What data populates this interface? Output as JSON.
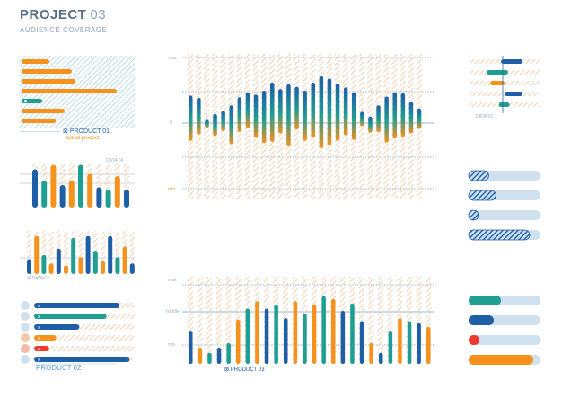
{
  "header": {
    "title": "PROJECT",
    "title_number": "03",
    "subtitle": "AUDIENCE COVERAGE"
  },
  "colors": {
    "orange": "#f5921e",
    "blue": "#1e5fa8",
    "teal": "#1f9e93",
    "red": "#ef3b2d",
    "light": "#cfe0ee",
    "gray": "#8fa3b8"
  },
  "panel_product01": {
    "label": "PRODUCT 01",
    "sublabel": "actual product"
  },
  "panel_data04": {
    "label": "DATA 04"
  },
  "panel_data02": {
    "label": "DATA 02"
  },
  "panel_product02": {
    "label": "PRODUCT 02",
    "marker": "x"
  },
  "panel_data01": {
    "label": "DATA 01"
  },
  "panel_product03": {
    "label": "PRODUCT 03"
  },
  "main_axis": {
    "max": "max",
    "zero": "0",
    "min": "min"
  },
  "bottom_axis": {
    "max": "max",
    "middle": "middle",
    "min": "min"
  },
  "chart_data": [
    {
      "type": "bar",
      "name": "product01",
      "orientation": "horizontal",
      "colors": [
        "orange",
        "orange",
        "orange",
        "orange",
        "teal",
        "orange",
        "orange"
      ],
      "values": [
        0.25,
        0.45,
        0.48,
        0.85,
        0.18,
        0.38,
        0.3
      ]
    },
    {
      "type": "bar",
      "name": "data04",
      "values": [
        0.85,
        0.6,
        0.95,
        0.5,
        0.6,
        0.95,
        0.75,
        0.45,
        0.4,
        0.7,
        0.4
      ],
      "colors": [
        "blue",
        "teal",
        "orange",
        "blue",
        "orange",
        "teal",
        "orange",
        "blue",
        "teal",
        "orange",
        "blue"
      ]
    },
    {
      "type": "bar",
      "name": "data02",
      "values": [
        0.35,
        0.9,
        0.45,
        0.25,
        0.6,
        0.2,
        0.85,
        0.4,
        0.9,
        0.55,
        0.3,
        0.9,
        0.4,
        0.65,
        0.25
      ],
      "colors": [
        "blue",
        "orange",
        "teal",
        "orange",
        "blue",
        "orange",
        "teal",
        "orange",
        "blue",
        "teal",
        "orange",
        "blue",
        "teal",
        "orange",
        "blue"
      ]
    },
    {
      "type": "bar",
      "name": "main",
      "note": "vertical range bars spanning around baseline",
      "ranges": [
        [
          0.85,
          -0.55
        ],
        [
          0.78,
          -0.35
        ],
        [
          0.1,
          -0.15
        ],
        [
          0.28,
          -0.4
        ],
        [
          0.38,
          -0.25
        ],
        [
          0.55,
          -0.65
        ],
        [
          0.8,
          -0.28
        ],
        [
          0.95,
          -0.15
        ],
        [
          0.88,
          -0.45
        ],
        [
          1.0,
          -0.62
        ],
        [
          1.25,
          -0.58
        ],
        [
          1.05,
          -0.32
        ],
        [
          1.2,
          -0.7
        ],
        [
          1.12,
          -0.2
        ],
        [
          1.0,
          -0.55
        ],
        [
          1.25,
          -0.45
        ],
        [
          1.45,
          -0.78
        ],
        [
          1.38,
          -0.68
        ],
        [
          1.22,
          -0.55
        ],
        [
          1.1,
          -0.38
        ],
        [
          0.95,
          -0.52
        ],
        [
          0.35,
          -0.1
        ],
        [
          0.2,
          -0.3
        ],
        [
          0.55,
          -0.28
        ],
        [
          0.82,
          -0.6
        ],
        [
          0.95,
          -0.48
        ],
        [
          0.92,
          -0.42
        ],
        [
          0.65,
          -0.32
        ],
        [
          0.45,
          -0.18
        ]
      ]
    },
    {
      "type": "bar",
      "name": "product03",
      "values": [
        0.45,
        0.22,
        0.15,
        0.22,
        0.28,
        0.6,
        0.75,
        0.85,
        0.75,
        0.8,
        0.62,
        0.85,
        0.68,
        0.8,
        0.92,
        0.88,
        0.72,
        0.82,
        0.58,
        0.28,
        0.15,
        0.45,
        0.62,
        0.58,
        0.55,
        0.5
      ],
      "colors": [
        "blue",
        "orange",
        "teal",
        "blue",
        "teal",
        "orange",
        "teal",
        "orange",
        "blue",
        "teal",
        "blue",
        "orange",
        "teal",
        "orange",
        "teal",
        "orange",
        "blue",
        "teal",
        "blue",
        "orange",
        "blue",
        "teal",
        "orange",
        "teal",
        "blue",
        "orange"
      ]
    },
    {
      "type": "bar",
      "name": "data01",
      "orientation": "gantt",
      "bars": [
        {
          "start": 0.45,
          "end": 0.75,
          "color": "blue"
        },
        {
          "start": 0.25,
          "end": 0.55,
          "color": "teal"
        },
        {
          "start": 0.3,
          "end": 0.5,
          "color": "orange"
        },
        {
          "start": 0.5,
          "end": 0.75,
          "color": "blue"
        },
        {
          "start": 0.42,
          "end": 0.57,
          "color": "teal"
        }
      ]
    },
    {
      "type": "bar",
      "name": "hatched_progress",
      "orientation": "horizontal",
      "values": [
        0.28,
        0.38,
        0.1,
        0.85
      ]
    },
    {
      "type": "bar",
      "name": "solid_progress",
      "orientation": "horizontal",
      "values": [
        0.45,
        0.35,
        0.15,
        0.9
      ],
      "colors": [
        "teal",
        "blue",
        "red",
        "orange"
      ]
    },
    {
      "type": "bar",
      "name": "product02",
      "orientation": "horizontal",
      "values": [
        0.85,
        0.72,
        0.45,
        0.22,
        0.15,
        0.95
      ],
      "colors": [
        "blue",
        "teal",
        "blue",
        "orange",
        "red",
        "blue"
      ],
      "dots": [
        "#cfe0ee",
        "#cfe0ee",
        "#cfe0ee",
        "#f3c9a8",
        "#f7b8a8",
        "#cfe0ee"
      ]
    }
  ]
}
